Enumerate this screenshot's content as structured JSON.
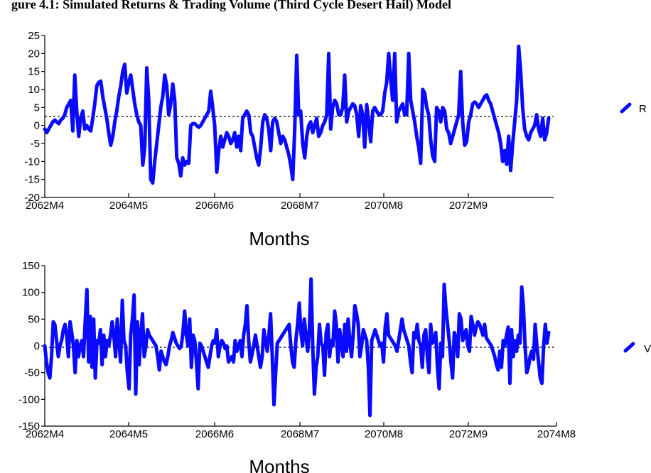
{
  "page": {
    "title": "gure 4.1: Simulated Returns & Trading Volume (Third Cycle Desert Hail) Model"
  },
  "colors": {
    "series": "#0a0aff",
    "zero_line": "#000000",
    "axis": "#000000"
  },
  "chart_data": [
    {
      "type": "line",
      "xlabel": "Months",
      "ylabel": "",
      "x_ticks": [
        "2062M4",
        "2064M5",
        "2066M6",
        "2068M7",
        "2070M8",
        "2072M9"
      ],
      "ylim": [
        -20,
        25
      ],
      "y_ticks": [
        "25",
        "20",
        "15",
        "10",
        "5",
        "0",
        "-5",
        "-10",
        "-15",
        "-20"
      ],
      "reference_line": 0,
      "grid": false,
      "legend_position": "right",
      "legend_label": "R",
      "series": [
        {
          "values": [
            -1,
            -2,
            -1,
            0,
            1,
            1.5,
            1,
            0.5,
            1.5,
            2,
            3,
            5,
            6,
            7,
            -1.5,
            14,
            4,
            -3,
            2,
            4,
            -1,
            0,
            -1,
            -1.5,
            2,
            6,
            11,
            12,
            12.3,
            8,
            5,
            2,
            -2,
            -5.5,
            -3,
            1,
            4,
            8,
            11,
            15,
            17,
            9,
            12,
            14,
            10,
            6,
            3,
            1,
            0,
            -11,
            -6,
            16,
            7,
            -15,
            -16,
            -10,
            -5,
            0,
            5,
            8,
            14,
            11,
            3,
            6,
            11.5,
            7,
            -9,
            -10.5,
            -14,
            -9,
            -11,
            -10,
            -10.5,
            0,
            0.5,
            0.5,
            0,
            -0.5,
            0,
            1,
            2,
            3,
            4,
            9.5,
            5,
            0,
            -13,
            -7,
            -3,
            -6,
            -4,
            -2,
            -3,
            -5,
            -4,
            -2,
            -6,
            -3,
            -7,
            2,
            3,
            4,
            3,
            -2,
            -3,
            -6,
            -9,
            -11,
            -6,
            1,
            3,
            2,
            -1,
            -7,
            1,
            2,
            1,
            -2,
            -5,
            -3,
            -4,
            -6,
            -8,
            -11,
            -15,
            -1,
            19.5,
            3,
            4,
            -5,
            -9,
            -3,
            0,
            1,
            -2,
            0,
            2,
            -3,
            -2,
            0,
            1,
            3,
            20,
            -1,
            5,
            7,
            6,
            3,
            3,
            5,
            14,
            1,
            4,
            5,
            6,
            5.5,
            3,
            -3,
            5.5,
            3,
            -6,
            5.8,
            1,
            -4.5,
            4,
            5,
            4,
            3,
            3,
            4,
            9,
            12,
            20,
            13,
            7,
            20,
            1,
            4,
            5,
            6,
            3,
            3,
            20,
            7,
            4,
            1,
            -3,
            -6,
            -10.5,
            10,
            9,
            5,
            3,
            -4,
            -8.5,
            -10,
            5,
            4,
            1,
            5,
            4,
            -1,
            -2,
            -5,
            -3,
            -1,
            1,
            3,
            15,
            1,
            -5.5,
            -4.5,
            1,
            3,
            6,
            6.5,
            6,
            5,
            6,
            7,
            8,
            8.5,
            7,
            6,
            4,
            2,
            0,
            -2,
            -5,
            -10,
            -7,
            -10.8,
            -3,
            -12.5,
            -5,
            1,
            7,
            22,
            15,
            5,
            -1,
            -3,
            -4,
            -2,
            -1,
            0,
            3,
            -1,
            -3,
            2,
            -4,
            -2,
            2
          ]
        }
      ]
    },
    {
      "type": "line",
      "xlabel": "Months",
      "ylabel": "",
      "x_ticks": [
        "2062M4",
        "2064M5",
        "2066M6",
        "2068M7",
        "2070M8",
        "2072M9",
        "2074M8"
      ],
      "ylim": [
        -150,
        150
      ],
      "y_ticks": [
        "150",
        "100",
        "50",
        "0",
        "-50",
        "-100",
        "-150"
      ],
      "reference_line": 0,
      "grid": false,
      "legend_position": "right",
      "legend_label": "V",
      "series": [
        {
          "values": [
            0,
            -30,
            -50,
            -60,
            -20,
            45,
            40,
            10,
            -20,
            0,
            10,
            30,
            40,
            20,
            -20,
            45,
            25,
            0,
            -50,
            10,
            -20,
            0,
            10,
            -20,
            45,
            105,
            -30,
            55,
            -40,
            50,
            -60,
            10,
            5,
            30,
            -35,
            20,
            -20,
            10,
            0,
            20,
            45,
            20,
            -20,
            50,
            10,
            -30,
            85,
            10,
            0,
            -50,
            -80,
            20,
            50,
            95,
            -90,
            45,
            -35,
            20,
            60,
            -20,
            0,
            30,
            20,
            15,
            10,
            5,
            0,
            -20,
            -45,
            -10,
            -20,
            -30,
            -35,
            -20,
            0,
            10,
            25,
            15,
            5,
            0,
            -5,
            0,
            25,
            65,
            20,
            0,
            50,
            -40,
            20,
            10,
            -30,
            -80,
            5,
            0,
            -10,
            -20,
            -30,
            -40,
            -20,
            0,
            10,
            5,
            30,
            -20,
            0,
            10,
            5,
            -5,
            0,
            -30,
            -25,
            -20,
            -30,
            10,
            -10,
            0,
            10,
            -20,
            20,
            40,
            75,
            10,
            -30,
            -15,
            0,
            20,
            0,
            -20,
            -40,
            -20,
            30,
            10,
            -10,
            20,
            60,
            -20,
            -110,
            -50,
            5,
            10,
            15,
            20,
            25,
            30,
            35,
            40,
            0,
            -30,
            -40,
            10,
            40,
            80,
            25,
            0,
            50,
            20,
            -10,
            30,
            125,
            0,
            -90,
            -40,
            -20,
            40,
            5,
            0,
            -55,
            25,
            40,
            -20,
            10,
            0,
            65,
            40,
            -30,
            30,
            5,
            -20,
            40,
            -10,
            50,
            10,
            -20,
            20,
            75,
            60,
            40,
            -20,
            0,
            30,
            20,
            10,
            -40,
            -130,
            10,
            20,
            30,
            20,
            10,
            0,
            5,
            -30,
            35,
            60,
            20,
            15,
            10,
            5,
            0,
            -10,
            10,
            30,
            50,
            30,
            20,
            10,
            0,
            -30,
            -50,
            25,
            15,
            40,
            10,
            0,
            -40,
            20,
            30,
            -20,
            -50,
            40,
            5,
            10,
            25,
            -40,
            -80,
            5,
            -20,
            115,
            70,
            40,
            10,
            -30,
            -60,
            25,
            15,
            -20,
            60,
            50,
            10,
            20,
            30,
            0,
            -10,
            55,
            40,
            20,
            35,
            45,
            40,
            30,
            20,
            40,
            15,
            10,
            5,
            0,
            -10,
            -20,
            -35,
            -45,
            -10,
            -40,
            10,
            0,
            20,
            35,
            -70,
            30,
            -20,
            10,
            -10,
            20,
            5,
            110,
            75,
            0,
            -50,
            -40,
            -20,
            -10,
            -25,
            40,
            0,
            -30,
            -60,
            -70,
            0,
            40,
            5,
            25
          ]
        }
      ]
    }
  ]
}
